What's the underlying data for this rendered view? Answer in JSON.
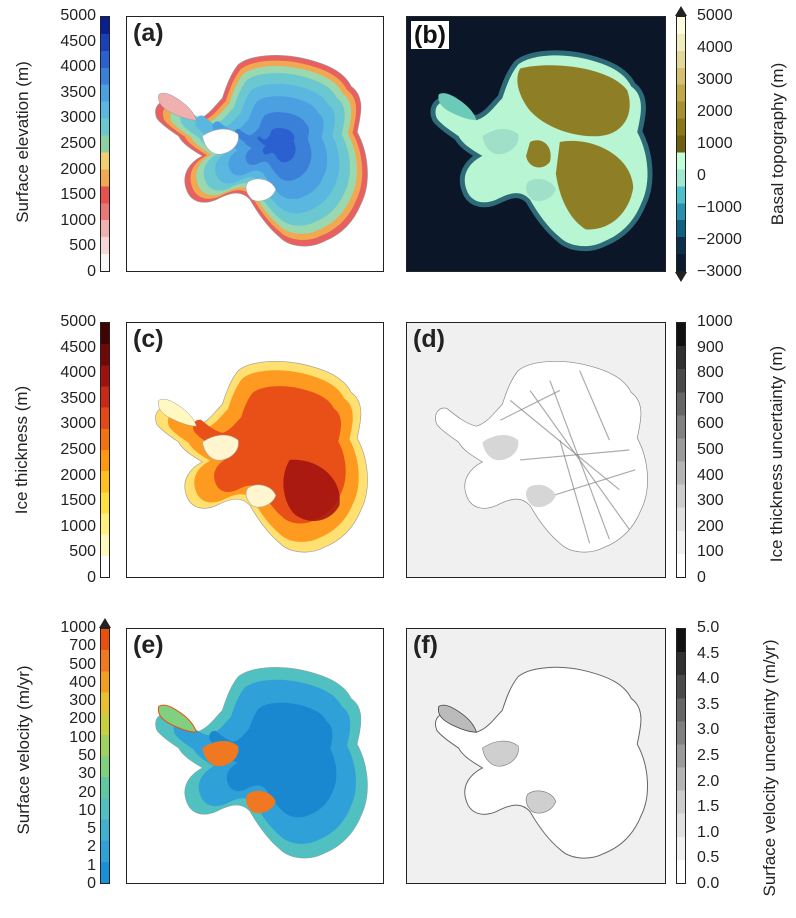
{
  "panels": {
    "a": {
      "label": "(a)",
      "colorbar_label": "Surface elevation (m)",
      "ticks": [
        "5000",
        "4500",
        "4000",
        "3500",
        "3000",
        "2500",
        "2000",
        "1500",
        "1000",
        "500",
        "0"
      ]
    },
    "b": {
      "label": "(b)",
      "colorbar_label": "Basal topography (m)",
      "ticks": [
        "5000",
        "4000",
        "3000",
        "2000",
        "1000",
        "0",
        "−1000",
        "−2000",
        "−3000"
      ]
    },
    "c": {
      "label": "(c)",
      "colorbar_label": "Ice thickness (m)",
      "ticks": [
        "5000",
        "4500",
        "4000",
        "3500",
        "3000",
        "2500",
        "2000",
        "1500",
        "1000",
        "500",
        "0"
      ]
    },
    "d": {
      "label": "(d)",
      "colorbar_label": "Ice thickness uncertainty (m)",
      "ticks": [
        "1000",
        "900",
        "800",
        "700",
        "600",
        "500",
        "400",
        "300",
        "200",
        "100",
        "0"
      ]
    },
    "e": {
      "label": "(e)",
      "colorbar_label": "Surface velocity (m/yr)",
      "ticks": [
        "1000",
        "700",
        "500",
        "400",
        "300",
        "200",
        "100",
        "50",
        "30",
        "20",
        "10",
        "5",
        "2",
        "1",
        "0"
      ]
    },
    "f": {
      "label": "(f)",
      "colorbar_label": "Surface velocity uncertainty (m/yr)",
      "ticks": [
        "5.0",
        "4.5",
        "4.0",
        "3.5",
        "3.0",
        "2.5",
        "2.0",
        "1.5",
        "1.0",
        "0.5",
        "0.0"
      ]
    }
  },
  "colors": {
    "a": [
      "#f7f7f7",
      "#f6d8d8",
      "#f0b0b0",
      "#e87878",
      "#e85050",
      "#f2a850",
      "#f0d070",
      "#8fd0a0",
      "#6cc8d0",
      "#5ab8e0",
      "#4aa0e0",
      "#3a80d8",
      "#2a60d0",
      "#1a40b8",
      "#0a2090"
    ],
    "b_ocean": [
      "#0a1a30",
      "#0e2e4e",
      "#106080",
      "#2a90b0",
      "#50c0c8",
      "#a0e8d0"
    ],
    "b_land": [
      "#c0ffd8",
      "#6e6010",
      "#8a7818",
      "#a89030",
      "#c0a848",
      "#d4c070",
      "#e4d898",
      "#f0ecc0",
      "#fcfce0"
    ],
    "c": [
      "#ffffff",
      "#fff8c0",
      "#fff080",
      "#ffe040",
      "#ffc020",
      "#ff9810",
      "#f57010",
      "#e44818",
      "#c82818",
      "#a01010",
      "#700808",
      "#400404"
    ],
    "gray": [
      "#ffffff",
      "#f0f0f0",
      "#e0e0e0",
      "#cccccc",
      "#b4b4b4",
      "#9a9a9a",
      "#808080",
      "#666666",
      "#4a4a4a",
      "#303030",
      "#111111"
    ],
    "e": [
      "#1a90d8",
      "#30a0d8",
      "#40b0d0",
      "#50c0c0",
      "#60c8a0",
      "#80d080",
      "#a0d060",
      "#c8d040",
      "#e8c030",
      "#f0a020",
      "#f07820",
      "#e85010"
    ]
  }
}
